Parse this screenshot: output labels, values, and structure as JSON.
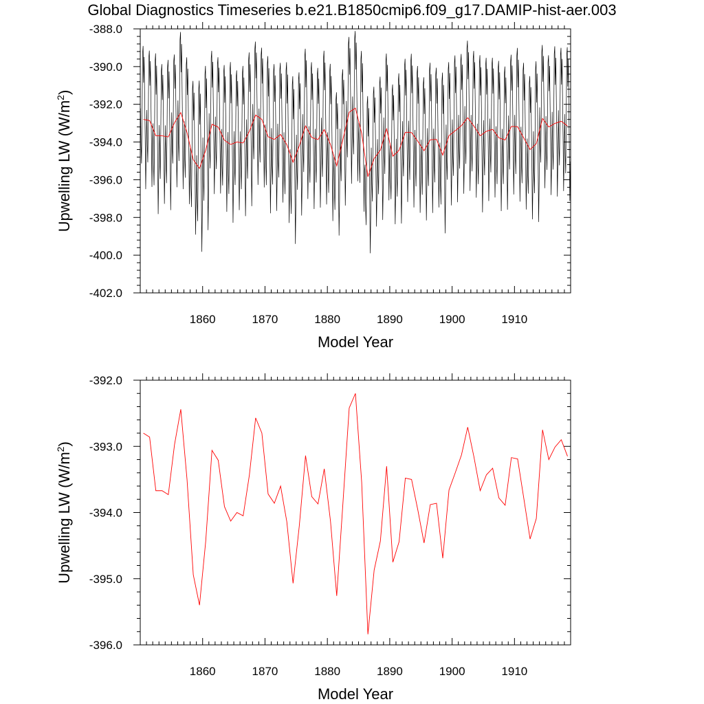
{
  "title": "Global Diagnostics Timeseries b.e21.B1850cmip6.f09_g17.DAMIP-hist-aer.003",
  "colors": {
    "monthly": "#000000",
    "annual": "#ff0000"
  },
  "chart_data": [
    {
      "type": "line",
      "xlabel": "Model Year",
      "ylabel": "Upwelling LW (W/m",
      "ylabel_sup": "2",
      "ylabel_close": ")",
      "xlim": [
        1850,
        1919
      ],
      "ylim": [
        -402.0,
        -388.0
      ],
      "xticks": [
        1860,
        1870,
        1880,
        1890,
        1900,
        1910
      ],
      "yticks": [
        -388.0,
        -390.0,
        -392.0,
        -394.0,
        -396.0,
        -398.0,
        -400.0,
        -402.0
      ],
      "ytick_labels": [
        "-388.0",
        "-390.0",
        "-392.0",
        "-394.0",
        "-396.0",
        "-398.0",
        "-400.0",
        "-402.0"
      ],
      "series": [
        {
          "color": "#000000",
          "annual_mean_ref": true,
          "amplitude": [
            4.1,
            3.9,
            4.6,
            4.0,
            4.3,
            3.8,
            4.5,
            4.2,
            4.4,
            4.9,
            4.7,
            4.1,
            3.9,
            4.2,
            4.6,
            4.0,
            4.3,
            4.4,
            4.1,
            4.0,
            4.5,
            4.2,
            4.0,
            4.6,
            4.8,
            4.1,
            4.3,
            4.2,
            4.0,
            4.4,
            4.5,
            4.1,
            3.9,
            4.2,
            4.3,
            4.6,
            4.5,
            4.0,
            4.1,
            4.2,
            4.0,
            4.3,
            4.1,
            4.4,
            4.2,
            4.1,
            4.3,
            4.0,
            4.6,
            4.1,
            4.2,
            4.0,
            4.3,
            4.2,
            4.5,
            4.1,
            4.0,
            4.3,
            4.1,
            4.0,
            4.4,
            4.2,
            4.1,
            4.6,
            4.1,
            4.0,
            4.3,
            4.1,
            4.4
          ]
        },
        {
          "color": "#ff0000",
          "x": [
            1850.5,
            1851.5,
            1852.5,
            1853.5,
            1854.5,
            1855.5,
            1856.5,
            1857.5,
            1858.5,
            1859.5,
            1860.5,
            1861.5,
            1862.5,
            1863.5,
            1864.5,
            1865.5,
            1866.5,
            1867.5,
            1868.5,
            1869.5,
            1870.5,
            1871.5,
            1872.5,
            1873.5,
            1874.5,
            1875.5,
            1876.5,
            1877.5,
            1878.5,
            1879.5,
            1880.5,
            1881.5,
            1882.5,
            1883.5,
            1884.5,
            1885.5,
            1886.5,
            1887.5,
            1888.5,
            1889.5,
            1890.5,
            1891.5,
            1892.5,
            1893.5,
            1894.5,
            1895.5,
            1896.5,
            1897.5,
            1898.5,
            1899.5,
            1900.5,
            1901.5,
            1902.5,
            1903.5,
            1904.5,
            1905.5,
            1906.5,
            1907.5,
            1908.5,
            1909.5,
            1910.5,
            1911.5,
            1912.5,
            1913.5,
            1914.5,
            1915.5,
            1916.5,
            1917.5,
            1918.5
          ],
          "values": [
            -392.8,
            -392.86,
            -393.67,
            -393.67,
            -393.73,
            -392.97,
            -392.44,
            -393.5,
            -394.94,
            -395.4,
            -394.43,
            -393.06,
            -393.21,
            -393.91,
            -394.13,
            -394.0,
            -394.05,
            -393.43,
            -392.57,
            -392.8,
            -393.72,
            -393.86,
            -393.6,
            -394.14,
            -395.07,
            -394.2,
            -393.14,
            -393.76,
            -393.87,
            -393.34,
            -394.13,
            -395.26,
            -393.85,
            -392.42,
            -392.2,
            -393.54,
            -395.84,
            -394.87,
            -394.43,
            -393.3,
            -394.75,
            -394.44,
            -393.48,
            -393.5,
            -393.96,
            -394.46,
            -393.88,
            -393.86,
            -394.69,
            -393.66,
            -393.4,
            -393.13,
            -392.71,
            -393.16,
            -393.67,
            -393.43,
            -393.33,
            -393.78,
            -393.89,
            -393.17,
            -393.19,
            -393.79,
            -394.4,
            -394.09,
            -392.75,
            -393.2,
            -393.01,
            -392.9,
            -393.15
          ]
        }
      ]
    },
    {
      "type": "line",
      "xlabel": "Model Year",
      "ylabel": "Upwelling LW (W/m",
      "ylabel_sup": "2",
      "ylabel_close": ")",
      "xlim": [
        1850,
        1919
      ],
      "ylim": [
        -396.0,
        -392.0
      ],
      "xticks": [
        1860,
        1870,
        1880,
        1890,
        1900,
        1910
      ],
      "yticks": [
        -392.0,
        -393.0,
        -394.0,
        -395.0,
        -396.0
      ],
      "ytick_labels": [
        "-392.0",
        "-393.0",
        "-394.0",
        "-395.0",
        "-396.0"
      ],
      "series": [
        {
          "color": "#ff0000",
          "same_as": "annual"
        }
      ]
    }
  ]
}
